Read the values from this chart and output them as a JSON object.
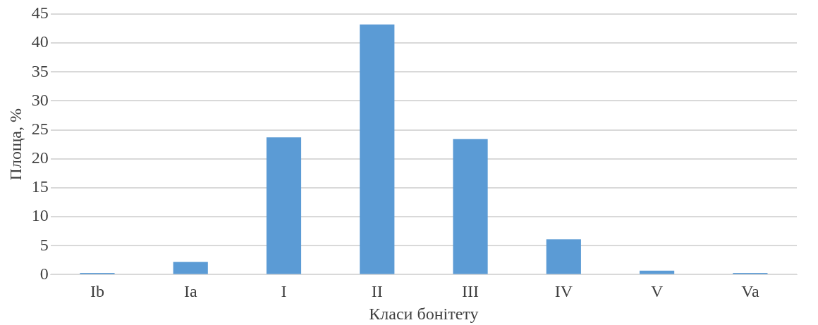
{
  "chart_data": {
    "type": "bar",
    "xlabel": "Класи бонітету",
    "ylabel": "Площа, %",
    "categories": [
      "Ib",
      "Ia",
      "I",
      "II",
      "III",
      "IV",
      "V",
      "Va"
    ],
    "values": [
      0.3,
      2.2,
      23.7,
      43.2,
      23.4,
      6.1,
      0.7,
      0.3
    ],
    "color": "#5b9bd5",
    "ylim": [
      0,
      45
    ],
    "yticks": [
      0,
      5,
      10,
      15,
      20,
      25,
      30,
      35,
      40,
      45
    ],
    "grid": "y"
  }
}
